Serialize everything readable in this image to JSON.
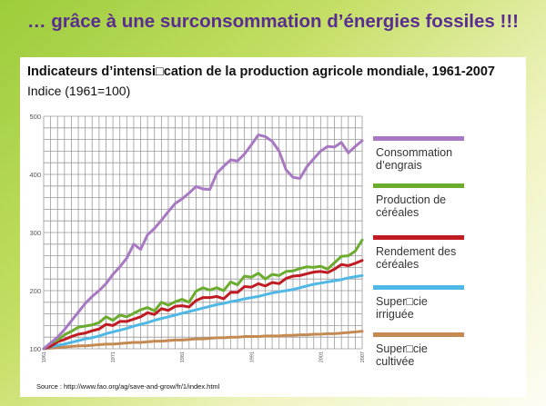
{
  "slide": {
    "title": "… grâce à une surconsommation d’énergies fossiles !!!"
  },
  "chart_data": {
    "type": "line",
    "title": "Indicateurs d’intensi□cation de la production agricole mondiale, 1961-2007",
    "subtitle": "Indice (1961=100)",
    "source": "Source : http://www.fao.org/ag/save-and-grow/fr/1/index.html",
    "ylim": [
      100,
      500
    ],
    "yticks": [
      100,
      200,
      300,
      400,
      500
    ],
    "xlim": [
      1961,
      2007
    ],
    "xticks": [
      1961,
      1971,
      1981,
      1991,
      2001,
      2007
    ],
    "grid": true,
    "x": [
      1961,
      1962,
      1963,
      1964,
      1965,
      1966,
      1967,
      1968,
      1969,
      1970,
      1971,
      1972,
      1973,
      1974,
      1975,
      1976,
      1977,
      1978,
      1979,
      1980,
      1981,
      1982,
      1983,
      1984,
      1985,
      1986,
      1987,
      1988,
      1989,
      1990,
      1991,
      1992,
      1993,
      1994,
      1995,
      1996,
      1997,
      1998,
      1999,
      2000,
      2001,
      2002,
      2003,
      2004,
      2005,
      2006,
      2007
    ],
    "series": [
      {
        "name": "Consommation\nd’engrais",
        "color": "#a879c2",
        "values": [
          100,
          110,
          120,
          133,
          148,
          163,
          178,
          190,
          200,
          212,
          228,
          241,
          256,
          280,
          271,
          296,
          307,
          321,
          336,
          350,
          358,
          368,
          379,
          375,
          374,
          402,
          414,
          425,
          423,
          435,
          451,
          468,
          465,
          457,
          440,
          408,
          395,
          393,
          413,
          427,
          440,
          448,
          447,
          455,
          437,
          448,
          458
        ],
        "x": [
          1961,
          1962,
          1963,
          1964,
          1965,
          1966,
          1967,
          1968,
          1969,
          1970,
          1971,
          1972,
          1973,
          1974,
          1975,
          1976,
          1977,
          1978,
          1979,
          1980,
          1981,
          1982,
          1983,
          1984,
          1985,
          1986,
          1987,
          1988,
          1989,
          1990,
          1991,
          1992,
          1993,
          1994,
          1995,
          1996,
          1997,
          1998,
          1999,
          2000,
          2001,
          2002,
          2003,
          2004,
          2005,
          2006,
          2007
        ]
      },
      {
        "name": "Production de\ncéréales",
        "color": "#6bab2e",
        "values": [
          100,
          110,
          115,
          124,
          130,
          137,
          139,
          141,
          145,
          155,
          149,
          158,
          155,
          161,
          167,
          171,
          165,
          180,
          175,
          181,
          185,
          180,
          199,
          205,
          201,
          205,
          200,
          215,
          210,
          225,
          223,
          230,
          220,
          228,
          226,
          233,
          234,
          238,
          241,
          240,
          242,
          237,
          248,
          259,
          260,
          268,
          287
        ]
      },
      {
        "name": "Rendement des\ncéréales",
        "color": "#c01a22",
        "values": [
          100,
          104,
          112,
          116,
          121,
          125,
          127,
          131,
          134,
          142,
          140,
          147,
          147,
          151,
          155,
          162,
          159,
          169,
          166,
          173,
          174,
          172,
          183,
          188,
          188,
          190,
          186,
          197,
          197,
          207,
          206,
          212,
          208,
          214,
          212,
          221,
          225,
          226,
          229,
          232,
          233,
          231,
          237,
          245,
          243,
          247,
          252
        ]
      },
      {
        "name": "Super□cie\nirriguée",
        "color": "#4fb8e6",
        "values": [
          100,
          103,
          106,
          108,
          111,
          114,
          117,
          119,
          122,
          126,
          129,
          132,
          135,
          139,
          142,
          145,
          149,
          152,
          155,
          158,
          161,
          164,
          167,
          170,
          173,
          176,
          178,
          181,
          183,
          186,
          188,
          190,
          193,
          196,
          198,
          200,
          202,
          205,
          208,
          211,
          213,
          215,
          217,
          219,
          222,
          224,
          226
        ]
      },
      {
        "name": "Super□cie\ncultivée",
        "color": "#c48a52",
        "values": [
          100,
          101,
          102,
          103,
          104,
          105,
          105,
          106,
          107,
          108,
          108,
          109,
          110,
          111,
          111,
          112,
          113,
          113,
          114,
          115,
          115,
          116,
          117,
          117,
          118,
          119,
          119,
          120,
          120,
          121,
          121,
          121,
          122,
          122,
          122,
          123,
          123,
          124,
          124,
          125,
          125,
          126,
          126,
          127,
          128,
          129,
          130
        ]
      }
    ]
  }
}
